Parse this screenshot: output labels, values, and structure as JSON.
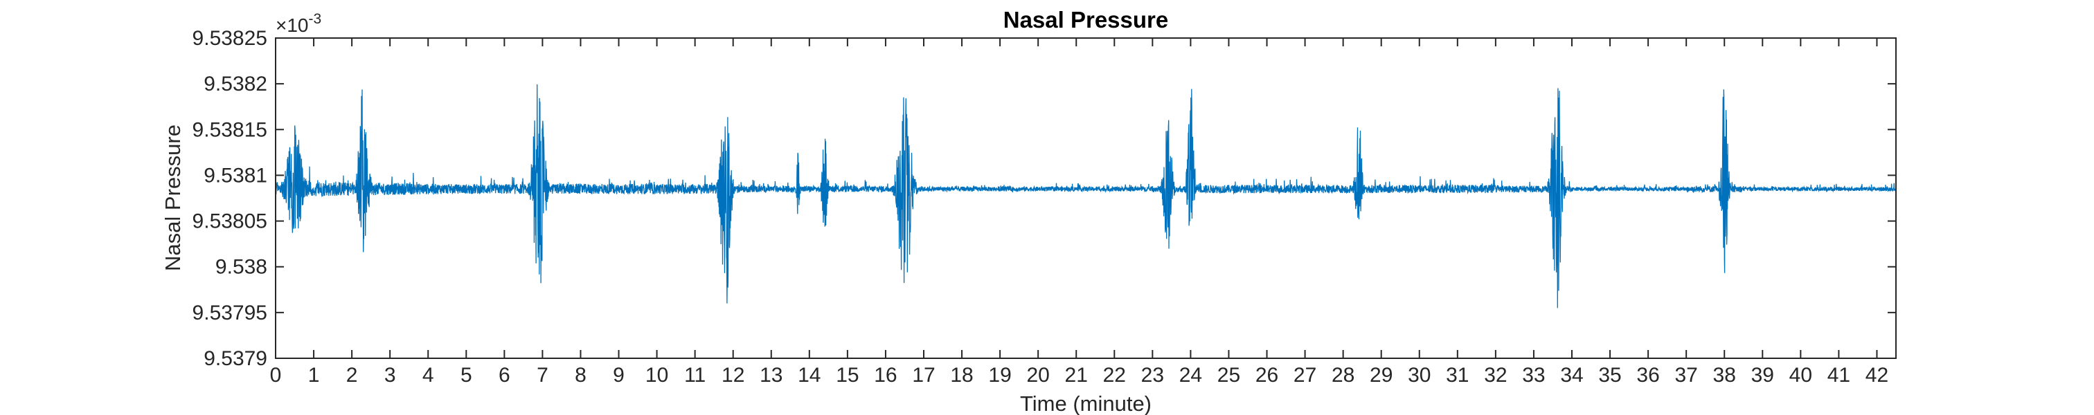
{
  "chart_data": {
    "type": "line",
    "title": "Nasal Pressure",
    "xlabel": "Time (minute)",
    "ylabel": "Nasal Pressure",
    "y_multiplier": "×10",
    "y_exponent": "-3",
    "xlim": [
      0,
      42.5
    ],
    "ylim": [
      9.5379,
      9.53825
    ],
    "x_ticks": [
      0,
      1,
      2,
      3,
      4,
      5,
      6,
      7,
      8,
      9,
      10,
      11,
      12,
      13,
      14,
      15,
      16,
      17,
      18,
      19,
      20,
      21,
      22,
      23,
      24,
      25,
      26,
      27,
      28,
      29,
      30,
      31,
      32,
      33,
      34,
      35,
      36,
      37,
      38,
      39,
      40,
      41,
      42
    ],
    "y_ticks": [
      9.5379,
      9.53795,
      9.538,
      9.53805,
      9.5381,
      9.53815,
      9.5382,
      9.53825
    ],
    "y_tick_labels": [
      "9.5379",
      "9.53795",
      "9.538",
      "9.53805",
      "9.5381",
      "9.53815",
      "9.5382",
      "9.53825"
    ],
    "baseline": 9.538085,
    "grid": false,
    "series": [
      {
        "color": "#0072BD",
        "bursts": [
          {
            "t": 0.5,
            "width": 0.5,
            "peak_high": 9.538155,
            "peak_low": 9.53803
          },
          {
            "t": 2.3,
            "width": 0.3,
            "peak_high": 9.53821,
            "peak_low": 9.538012
          },
          {
            "t": 6.9,
            "width": 0.35,
            "peak_high": 9.53821,
            "peak_low": 9.537958
          },
          {
            "t": 11.8,
            "width": 0.3,
            "peak_high": 9.53819,
            "peak_low": 9.53794
          },
          {
            "t": 13.7,
            "width": 0.1,
            "peak_high": 9.538125,
            "peak_low": 9.53805
          },
          {
            "t": 14.4,
            "width": 0.15,
            "peak_high": 9.53815,
            "peak_low": 9.53802
          },
          {
            "t": 16.5,
            "width": 0.4,
            "peak_high": 9.53821,
            "peak_low": 9.53796
          },
          {
            "t": 23.4,
            "width": 0.25,
            "peak_high": 9.538165,
            "peak_low": 9.53801
          },
          {
            "t": 24.0,
            "width": 0.2,
            "peak_high": 9.538205,
            "peak_low": 9.53803
          },
          {
            "t": 28.4,
            "width": 0.2,
            "peak_high": 9.538185,
            "peak_low": 9.53804
          },
          {
            "t": 33.6,
            "width": 0.3,
            "peak_high": 9.53823,
            "peak_low": 9.53795
          },
          {
            "t": 38.0,
            "width": 0.2,
            "peak_high": 9.53821,
            "peak_low": 9.53798
          }
        ]
      }
    ]
  }
}
